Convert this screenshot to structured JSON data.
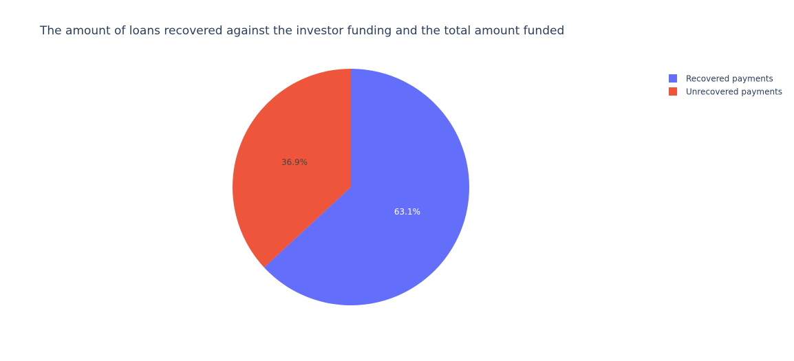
{
  "chart_data": {
    "type": "pie",
    "title": "The amount of loans recovered against the investor funding and the total amount funded",
    "labels": [
      "Recovered payments",
      "Unrecovered payments"
    ],
    "values": [
      63.1,
      36.9
    ],
    "percent_labels": [
      "63.1%",
      "36.9%"
    ],
    "colors": [
      "#636efa",
      "#ef553b"
    ],
    "label_colors": [
      "#ffffff",
      "#444444"
    ],
    "direction": "clockwise",
    "start_angle_deg": 90,
    "legend_placement": "top-right"
  }
}
